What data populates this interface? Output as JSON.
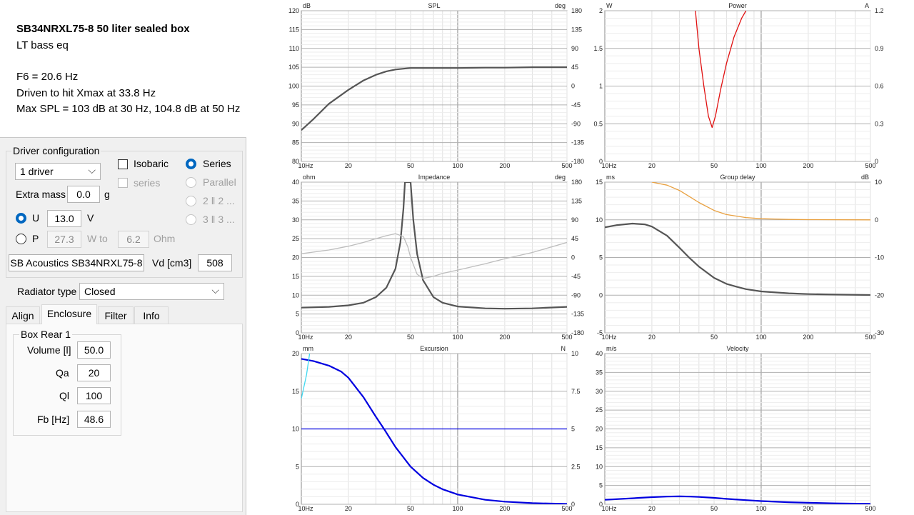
{
  "notes": {
    "title": "SB34NRXL75-8  50 liter sealed box",
    "subtitle": "LT  bass eq",
    "lines": [
      "F6 = 20.6 Hz",
      "Driven to hit Xmax at 33.8 Hz",
      "Max SPL = 103 dB at 30 Hz,  104.8 dB at 50 Hz"
    ]
  },
  "driver_config": {
    "group_label": "Driver configuration",
    "drivers_select": "1 driver",
    "isobaric_label": "Isobaric",
    "isobaric_checked": false,
    "series_check_label": "series",
    "radio_series": "Series",
    "radio_parallel": "Parallel",
    "radio_22": "2 ‖ 2 ...",
    "radio_33": "3 ‖ 3 ...",
    "extra_mass_label": "Extra mass",
    "extra_mass_value": "0.0",
    "extra_mass_unit": "g",
    "u_label": "U",
    "u_value": "13.0",
    "u_unit": "V",
    "p_label": "P",
    "p_value": "27.3",
    "p_unit": "W to",
    "ohm_value": "6.2",
    "ohm_unit": "Ohm",
    "driver_button": "SB Acoustics SB34NRXL75-8",
    "vd_label": "Vd [cm3]",
    "vd_value": "508"
  },
  "radiator": {
    "label": "Radiator type",
    "value": "Closed"
  },
  "tabs": [
    "Align",
    "Enclosure",
    "Filter",
    "Info"
  ],
  "active_tab": "Enclosure",
  "box": {
    "group_label": "Box Rear 1",
    "volume_label": "Volume [l]",
    "volume_value": "50.0",
    "qa_label": "Qa",
    "qa_value": "20",
    "ql_label": "Ql",
    "ql_value": "100",
    "fb_label": "Fb [Hz]",
    "fb_value": "48.6"
  },
  "colors": {
    "radio_on": "#0067c0",
    "gray_curve": "#555555",
    "light_curve": "#bdbdbd",
    "red": "#e01010",
    "orange": "#e8a040",
    "blue": "#0000e0",
    "cyan": "#40d8f0"
  },
  "chart_data": [
    {
      "title": "SPL",
      "type": "line",
      "xlabel": "10Hz",
      "x_ticks": [
        "10Hz",
        "20",
        "50",
        "100",
        "200",
        "500"
      ],
      "xlim": [
        10,
        500
      ],
      "x_scale": "log",
      "y_unit_left": "dB",
      "ylim": [
        80,
        120
      ],
      "y_ticks": [
        "120",
        "115",
        "110",
        "105",
        "100",
        "95",
        "90",
        "85",
        "80"
      ],
      "y_unit_right": "deg",
      "y2lim": [
        -180,
        180
      ],
      "y2_ticks": [
        "180",
        "135",
        "90",
        "45",
        "0",
        "-45",
        "-90",
        "-135",
        "-180"
      ],
      "series": [
        {
          "color": "#555555",
          "axis": "left",
          "x": [
            10,
            12,
            15,
            20,
            25,
            30,
            35,
            40,
            50,
            60,
            80,
            100,
            150,
            200,
            300,
            500
          ],
          "y": [
            88.3,
            91.3,
            95.3,
            99.0,
            101.5,
            103.0,
            103.9,
            104.4,
            104.8,
            104.8,
            104.8,
            104.8,
            104.9,
            104.9,
            105.0,
            105.0
          ]
        }
      ]
    },
    {
      "title": "Power",
      "type": "line",
      "x_ticks": [
        "10Hz",
        "20",
        "50",
        "100",
        "200",
        "500"
      ],
      "xlim": [
        10,
        500
      ],
      "x_scale": "log",
      "y_unit_left": "W",
      "ylim": [
        0,
        2
      ],
      "y_ticks": [
        "2",
        "1.5",
        "1",
        "0.5",
        "0"
      ],
      "y_unit_right": "A",
      "y2lim": [
        0,
        1.2
      ],
      "y2_ticks": [
        "1.2",
        "0.9",
        "0.6",
        "0.3",
        "0"
      ],
      "series": [
        {
          "color": "#e01010",
          "axis": "left",
          "x": [
            38,
            40,
            43,
            46,
            48.6,
            51,
            55,
            60,
            67,
            75,
            80
          ],
          "y": [
            2.0,
            1.5,
            1.0,
            0.6,
            0.45,
            0.6,
            0.95,
            1.3,
            1.65,
            1.9,
            2.0
          ]
        }
      ]
    },
    {
      "title": "Impedance",
      "type": "line",
      "x_ticks": [
        "10Hz",
        "20",
        "50",
        "100",
        "200",
        "500"
      ],
      "xlim": [
        10,
        500
      ],
      "x_scale": "log",
      "y_unit_left": "ohm",
      "ylim": [
        0,
        40
      ],
      "y_ticks": [
        "40",
        "35",
        "30",
        "25",
        "20",
        "15",
        "10",
        "5",
        "0"
      ],
      "y_unit_right": "deg",
      "y2lim": [
        -180,
        180
      ],
      "y2_ticks": [
        "180",
        "135",
        "90",
        "45",
        "0",
        "-45",
        "-90",
        "-135",
        "-180"
      ],
      "series": [
        {
          "color": "#555555",
          "axis": "left",
          "x": [
            10,
            15,
            20,
            25,
            30,
            35,
            40,
            43,
            45,
            46,
            48,
            50,
            52,
            55,
            60,
            70,
            80,
            100,
            150,
            200,
            300,
            500
          ],
          "y": [
            6.7,
            6.9,
            7.3,
            8.0,
            9.5,
            12.0,
            17.0,
            24.0,
            33.0,
            40.0,
            40.0,
            40.0,
            30.0,
            21.0,
            14.0,
            9.5,
            8.0,
            7.0,
            6.5,
            6.4,
            6.5,
            6.9
          ]
        },
        {
          "color": "#bdbdbd",
          "axis": "right",
          "x": [
            10,
            15,
            20,
            25,
            30,
            35,
            40,
            45,
            48,
            50,
            55,
            60,
            70,
            80,
            100,
            150,
            200,
            300,
            500
          ],
          "y": [
            9,
            18,
            27,
            36,
            45,
            52,
            57,
            50,
            25,
            0,
            -40,
            -50,
            -45,
            -38,
            -30,
            -15,
            -3,
            12,
            36
          ]
        }
      ]
    },
    {
      "title": "Group delay",
      "type": "line",
      "x_ticks": [
        "10Hz",
        "20",
        "50",
        "100",
        "200",
        "500"
      ],
      "xlim": [
        10,
        500
      ],
      "x_scale": "log",
      "y_unit_left": "ms",
      "ylim": [
        -5,
        15
      ],
      "y_ticks": [
        "15",
        "10",
        "5",
        "0",
        "-5"
      ],
      "y_unit_right": "dB",
      "y2lim": [
        -30,
        10
      ],
      "y2_ticks": [
        "10",
        "0",
        "-10",
        "-20",
        "-30"
      ],
      "series": [
        {
          "color": "#555555",
          "axis": "left",
          "x": [
            10,
            12,
            15,
            18,
            20,
            25,
            30,
            35,
            40,
            50,
            60,
            70,
            80,
            100,
            150,
            200,
            300,
            500
          ],
          "y": [
            9.0,
            9.3,
            9.5,
            9.4,
            9.1,
            7.9,
            6.3,
            4.9,
            3.8,
            2.3,
            1.5,
            1.1,
            0.8,
            0.5,
            0.25,
            0.15,
            0.08,
            0.02
          ]
        },
        {
          "color": "#e8a040",
          "axis": "right",
          "x": [
            20,
            25,
            30,
            35,
            40,
            50,
            60,
            80,
            100,
            150,
            200,
            300,
            500
          ],
          "y": [
            10,
            9.2,
            7.8,
            6.1,
            4.6,
            2.5,
            1.4,
            0.6,
            0.3,
            0.1,
            0.05,
            0.02,
            0.0
          ]
        }
      ]
    },
    {
      "title": "Excursion",
      "type": "line",
      "x_ticks": [
        "10Hz",
        "20",
        "50",
        "100",
        "200",
        "500"
      ],
      "xlim": [
        10,
        500
      ],
      "x_scale": "log",
      "y_unit_left": "mm",
      "ylim": [
        0,
        20
      ],
      "y_ticks": [
        "20",
        "15",
        "10",
        "5",
        "0"
      ],
      "y_unit_right": "N",
      "y2lim": [
        0,
        10
      ],
      "y2_ticks": [
        "10",
        "7.5",
        "5",
        "2.5",
        "0"
      ],
      "series": [
        {
          "color": "#0000e0",
          "axis": "left",
          "x": [
            10,
            12,
            15,
            18,
            20,
            25,
            30,
            33.8,
            40,
            50,
            60,
            70,
            80,
            100,
            150,
            200,
            300,
            500
          ],
          "y": [
            19.3,
            19.0,
            18.4,
            17.6,
            16.8,
            14.2,
            11.6,
            10.0,
            7.6,
            5.0,
            3.5,
            2.6,
            2.0,
            1.3,
            0.6,
            0.35,
            0.15,
            0.05
          ]
        },
        {
          "color": "#0000e0",
          "axis": "left",
          "x": [
            10,
            500
          ],
          "y": [
            10,
            10
          ]
        },
        {
          "color": "#40d8f0",
          "axis": "right",
          "x": [
            10,
            10.8,
            11.3
          ],
          "y": [
            7.0,
            8.6,
            10.0
          ]
        }
      ]
    },
    {
      "title": "Velocity",
      "type": "line",
      "x_ticks": [
        "10Hz",
        "20",
        "50",
        "100",
        "200",
        "500"
      ],
      "xlim": [
        10,
        500
      ],
      "x_scale": "log",
      "y_unit_left": "m/s",
      "ylim": [
        0,
        40
      ],
      "y_ticks": [
        "40",
        "35",
        "30",
        "25",
        "20",
        "15",
        "10",
        "5",
        "0"
      ],
      "series": [
        {
          "color": "#0000e0",
          "axis": "left",
          "x": [
            10,
            15,
            20,
            25,
            30,
            35,
            40,
            50,
            60,
            80,
            100,
            150,
            200,
            300,
            500
          ],
          "y": [
            1.2,
            1.6,
            1.9,
            2.05,
            2.1,
            2.05,
            1.95,
            1.7,
            1.45,
            1.1,
            0.85,
            0.55,
            0.4,
            0.25,
            0.12
          ]
        }
      ]
    }
  ]
}
